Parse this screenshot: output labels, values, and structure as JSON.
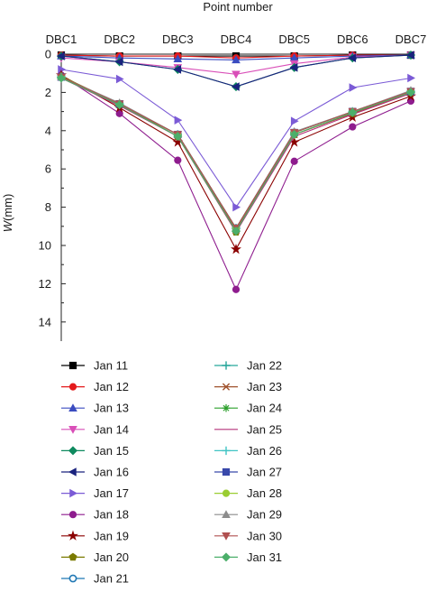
{
  "chart_data": {
    "type": "line",
    "xlabel": "Point number",
    "ylabel_symbol": "W",
    "ylabel_unit": "(mm)",
    "categories": [
      "DBC1",
      "DBC2",
      "DBC3",
      "DBC4",
      "DBC5",
      "DBC6",
      "DBC7"
    ],
    "ylim": [
      0,
      15
    ],
    "y_inverted": true,
    "yticks": [
      0,
      2,
      4,
      6,
      8,
      10,
      12,
      14
    ],
    "x_axis_position": "top",
    "grid": false,
    "legend_position": "bottom",
    "series": [
      {
        "name": "Jan 11",
        "color": "#000000",
        "marker": "square",
        "values": [
          0.05,
          0.1,
          0.1,
          0.1,
          0.1,
          0.05,
          0.05
        ]
      },
      {
        "name": "Jan 12",
        "color": "#e41a1c",
        "marker": "circle",
        "values": [
          0.05,
          0.1,
          0.1,
          0.2,
          0.1,
          0.05,
          0.05
        ]
      },
      {
        "name": "Jan 13",
        "color": "#3b4cc0",
        "marker": "triangle-up",
        "values": [
          0.1,
          0.2,
          0.25,
          0.3,
          0.2,
          0.1,
          0.05
        ]
      },
      {
        "name": "Jan 14",
        "color": "#d94fb8",
        "marker": "triangle-down",
        "values": [
          0.2,
          0.4,
          0.7,
          1.05,
          0.5,
          0.15,
          0.05
        ]
      },
      {
        "name": "Jan 15",
        "color": "#0e8a5f",
        "marker": "diamond",
        "values": [
          0.1,
          0.4,
          0.8,
          1.7,
          0.7,
          0.2,
          0.05
        ]
      },
      {
        "name": "Jan 16",
        "color": "#1a237e",
        "marker": "triangle-left",
        "values": [
          0.1,
          0.4,
          0.8,
          1.7,
          0.7,
          0.2,
          0.05
        ]
      },
      {
        "name": "Jan 17",
        "color": "#7b5bd6",
        "marker": "triangle-right",
        "values": [
          0.8,
          1.3,
          3.45,
          8.0,
          3.5,
          1.75,
          1.25
        ]
      },
      {
        "name": "Jan 18",
        "color": "#8e1c8e",
        "marker": "circle",
        "values": [
          1.1,
          3.1,
          5.55,
          12.3,
          5.6,
          3.8,
          2.45
        ]
      },
      {
        "name": "Jan 19",
        "color": "#8b0000",
        "marker": "star",
        "values": [
          1.1,
          2.8,
          4.6,
          10.2,
          4.6,
          3.3,
          2.2
        ]
      },
      {
        "name": "Jan 20",
        "color": "#7a7a00",
        "marker": "pentagon",
        "values": [
          1.15,
          2.6,
          4.3,
          9.3,
          4.2,
          3.1,
          2.0
        ]
      },
      {
        "name": "Jan 21",
        "color": "#1f77b4",
        "marker": "ring",
        "values": [
          1.2,
          2.6,
          4.2,
          9.1,
          4.1,
          3.0,
          1.95
        ]
      },
      {
        "name": "Jan 22",
        "color": "#26a69a",
        "marker": "plus",
        "values": [
          1.2,
          2.6,
          4.2,
          9.1,
          4.1,
          3.0,
          1.95
        ]
      },
      {
        "name": "Jan 23",
        "color": "#a0522d",
        "marker": "x",
        "values": [
          1.2,
          2.65,
          4.3,
          9.2,
          4.2,
          3.1,
          2.0
        ]
      },
      {
        "name": "Jan 24",
        "color": "#2ca02c",
        "marker": "asterisk",
        "values": [
          1.2,
          2.6,
          4.2,
          9.1,
          4.1,
          3.0,
          1.95
        ]
      },
      {
        "name": "Jan 25",
        "color": "#b5337a",
        "marker": "none",
        "values": [
          1.25,
          2.7,
          4.3,
          9.3,
          4.3,
          3.15,
          2.05
        ]
      },
      {
        "name": "Jan 26",
        "color": "#40c4c4",
        "marker": "plus",
        "values": [
          1.2,
          2.6,
          4.2,
          9.1,
          4.1,
          3.0,
          1.95
        ]
      },
      {
        "name": "Jan 27",
        "color": "#3949ab",
        "marker": "square",
        "values": [
          1.2,
          2.6,
          4.2,
          9.1,
          4.1,
          3.0,
          1.95
        ]
      },
      {
        "name": "Jan 28",
        "color": "#9acd32",
        "marker": "circle",
        "values": [
          1.2,
          2.6,
          4.2,
          9.1,
          4.1,
          3.0,
          1.95
        ]
      },
      {
        "name": "Jan 29",
        "color": "#8c8c8c",
        "marker": "triangle-up",
        "values": [
          1.2,
          2.55,
          4.2,
          9.1,
          4.05,
          3.0,
          1.9
        ]
      },
      {
        "name": "Jan 30",
        "color": "#b05050",
        "marker": "triangle-down",
        "values": [
          1.2,
          2.6,
          4.2,
          9.1,
          4.1,
          3.0,
          1.95
        ]
      },
      {
        "name": "Jan 31",
        "color": "#4caf6a",
        "marker": "diamond",
        "values": [
          1.25,
          2.65,
          4.3,
          9.25,
          4.2,
          3.05,
          2.0
        ]
      }
    ]
  }
}
